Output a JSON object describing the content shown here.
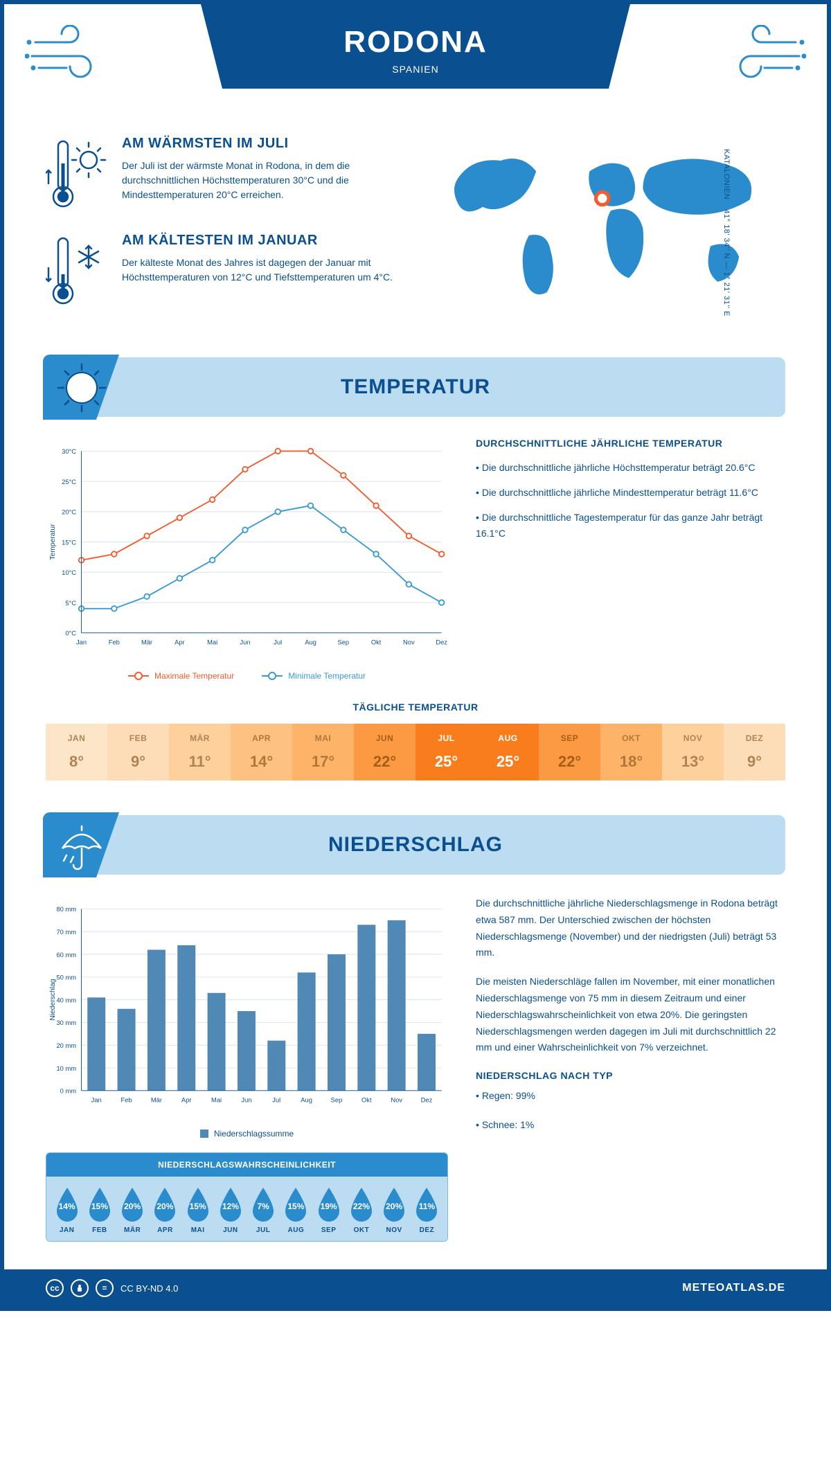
{
  "colors": {
    "primary": "#0a4f8f",
    "accent": "#2a8ccc",
    "light": "#bcdcf2",
    "max_line": "#f25c2e",
    "min_line": "#3b9ad6",
    "bar": "#5089b6"
  },
  "header": {
    "title": "RODONA",
    "subtitle": "SPANIEN"
  },
  "coords": {
    "region": "KATALONIEN",
    "line": "41° 18' 34'' N — 1° 21' 31'' E"
  },
  "facts": {
    "warm": {
      "title": "AM WÄRMSTEN IM JULI",
      "text": "Der Juli ist der wärmste Monat in Rodona, in dem die durchschnittlichen Höchsttemperaturen 30°C und die Mindesttemperaturen 20°C erreichen."
    },
    "cold": {
      "title": "AM KÄLTESTEN IM JANUAR",
      "text": "Der kälteste Monat des Jahres ist dagegen der Januar mit Höchsttemperaturen von 12°C und Tiefsttemperaturen um 4°C."
    }
  },
  "sections": {
    "temp": "TEMPERATUR",
    "precip": "NIEDERSCHLAG"
  },
  "temp_chart": {
    "months": [
      "Jan",
      "Feb",
      "Mär",
      "Apr",
      "Mai",
      "Jun",
      "Jul",
      "Aug",
      "Sep",
      "Okt",
      "Nov",
      "Dez"
    ],
    "max": [
      12,
      13,
      16,
      19,
      22,
      27,
      30,
      30,
      26,
      21,
      16,
      13
    ],
    "min": [
      4,
      4,
      6,
      9,
      12,
      17,
      20,
      21,
      17,
      13,
      8,
      5
    ],
    "ylim": [
      0,
      30
    ],
    "ystep": 5,
    "legend_max": "Maximale Temperatur",
    "legend_min": "Minimale Temperatur",
    "ylabel": "Temperatur"
  },
  "temp_info": {
    "title": "DURCHSCHNITTLICHE JÄHRLICHE TEMPERATUR",
    "b1": "• Die durchschnittliche jährliche Höchsttemperatur beträgt 20.6°C",
    "b2": "• Die durchschnittliche jährliche Mindesttemperatur beträgt 11.6°C",
    "b3": "• Die durchschnittliche Tagestemperatur für das ganze Jahr beträgt 16.1°C"
  },
  "daily": {
    "title": "TÄGLICHE TEMPERATUR",
    "months": [
      "JAN",
      "FEB",
      "MÄR",
      "APR",
      "MAI",
      "JUN",
      "JUL",
      "AUG",
      "SEP",
      "OKT",
      "NOV",
      "DEZ"
    ],
    "values": [
      "8°",
      "9°",
      "11°",
      "14°",
      "17°",
      "22°",
      "25°",
      "25°",
      "22°",
      "18°",
      "13°",
      "9°"
    ],
    "bg": [
      "#fde5c7",
      "#fdddb7",
      "#fdd09c",
      "#fdc182",
      "#fdb368",
      "#fc9a44",
      "#f97d1c",
      "#f97d1c",
      "#fc9a44",
      "#fdb368",
      "#fdd09c",
      "#fdddb7"
    ],
    "fg": [
      "#b08354",
      "#b08354",
      "#b08354",
      "#b07838",
      "#b07838",
      "#a55e14",
      "#ffffff",
      "#ffffff",
      "#a55e14",
      "#b07838",
      "#b08354",
      "#b08354"
    ]
  },
  "precip_chart": {
    "months": [
      "Jan",
      "Feb",
      "Mär",
      "Apr",
      "Mai",
      "Jun",
      "Jul",
      "Aug",
      "Sep",
      "Okt",
      "Nov",
      "Dez"
    ],
    "values": [
      41,
      36,
      62,
      64,
      43,
      35,
      22,
      52,
      60,
      73,
      75,
      25
    ],
    "ylim": [
      0,
      80
    ],
    "ystep": 10,
    "ylabel": "Niederschlag",
    "legend": "Niederschlagssumme"
  },
  "precip_text": {
    "p1": "Die durchschnittliche jährliche Niederschlagsmenge in Rodona beträgt etwa 587 mm. Der Unterschied zwischen der höchsten Niederschlagsmenge (November) und der niedrigsten (Juli) beträgt 53 mm.",
    "p2": "Die meisten Niederschläge fallen im November, mit einer monatlichen Niederschlagsmenge von 75 mm in diesem Zeitraum und einer Niederschlagswahrscheinlichkeit von etwa 20%. Die geringsten Niederschlagsmengen werden dagegen im Juli mit durchschnittlich 22 mm und einer Wahrscheinlichkeit von 7% verzeichnet.",
    "type_title": "NIEDERSCHLAG NACH TYP",
    "type1": "• Regen: 99%",
    "type2": "• Schnee: 1%"
  },
  "prob": {
    "title": "NIEDERSCHLAGSWAHRSCHEINLICHKEIT",
    "months": [
      "JAN",
      "FEB",
      "MÄR",
      "APR",
      "MAI",
      "JUN",
      "JUL",
      "AUG",
      "SEP",
      "OKT",
      "NOV",
      "DEZ"
    ],
    "values": [
      "14%",
      "15%",
      "20%",
      "20%",
      "15%",
      "12%",
      "7%",
      "15%",
      "19%",
      "22%",
      "20%",
      "11%"
    ]
  },
  "footer": {
    "license": "CC BY-ND 4.0",
    "brand": "METEOATLAS.DE"
  }
}
